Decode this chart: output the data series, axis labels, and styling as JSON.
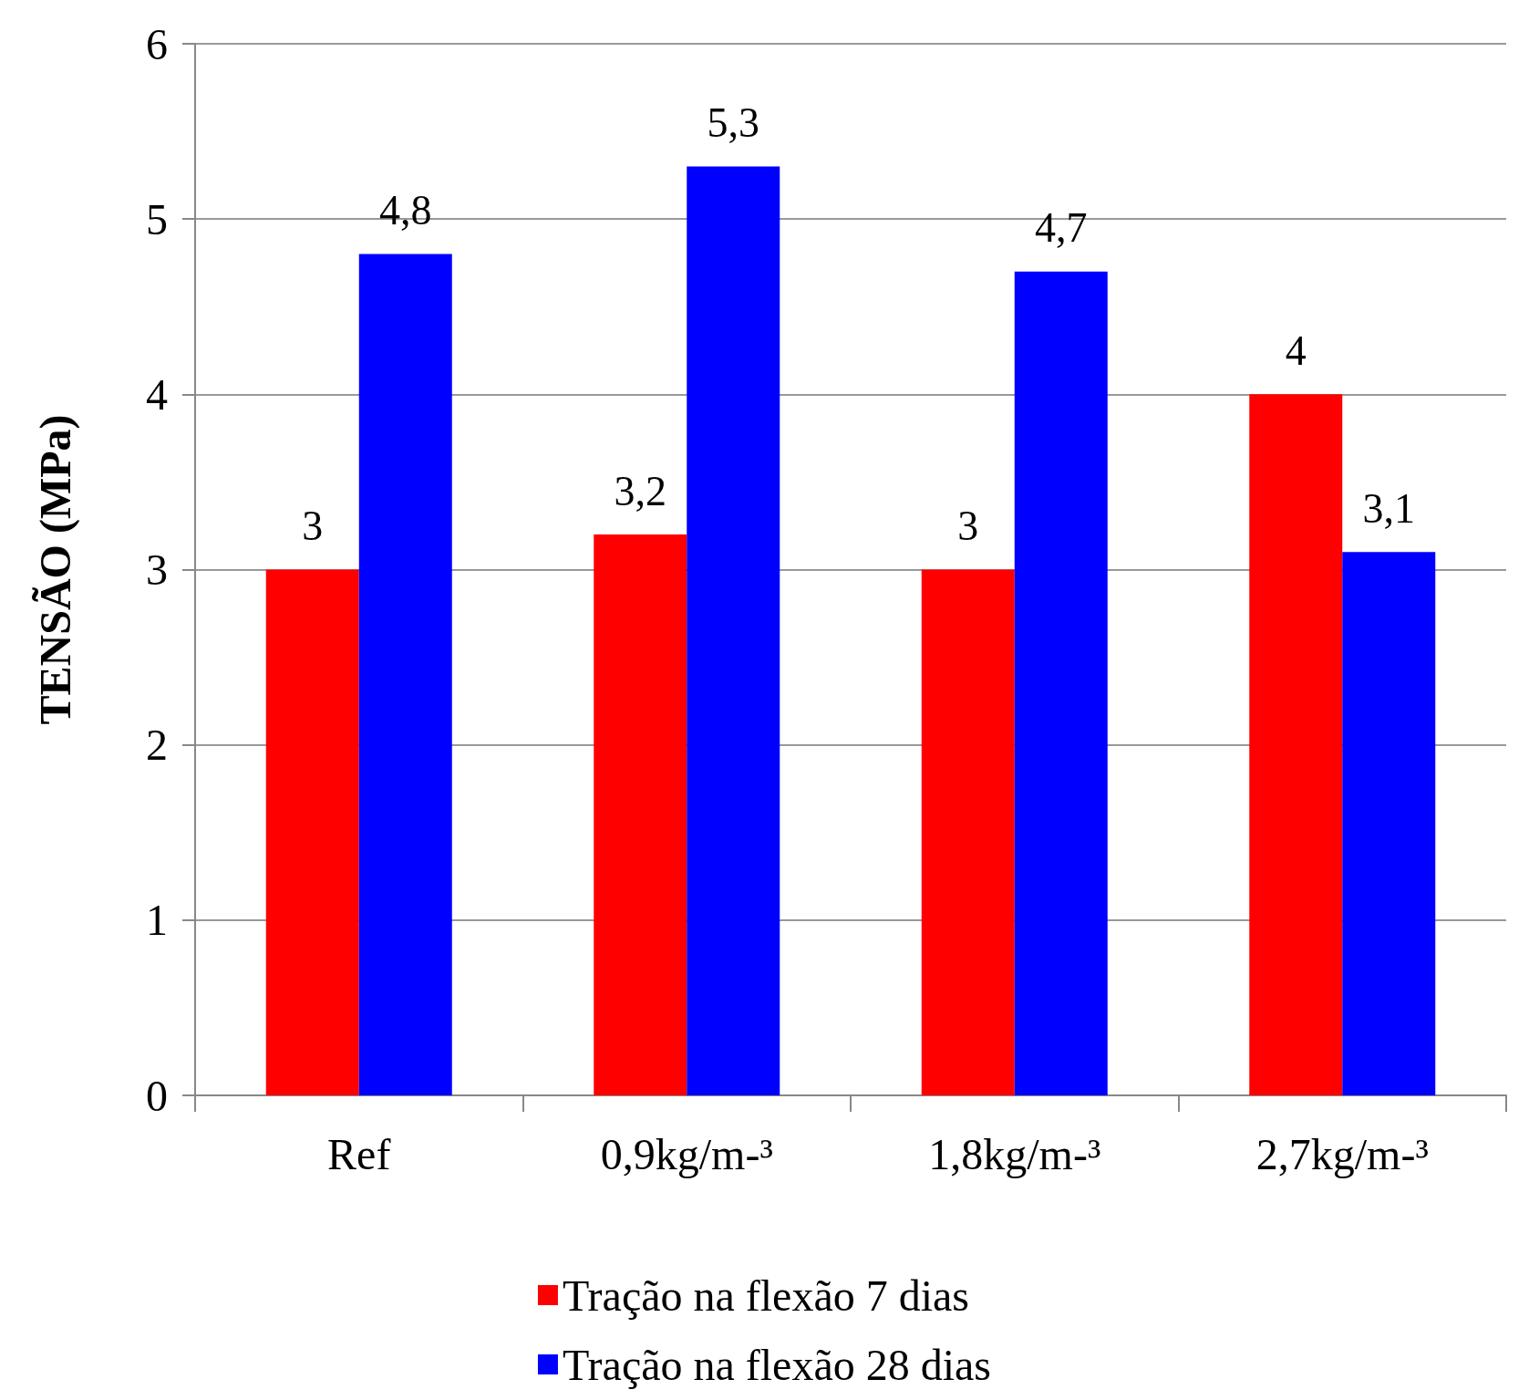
{
  "chart_data": {
    "type": "bar",
    "ylabel": "TENSÃO (MPa)",
    "categories": [
      "Ref",
      "0,9kg/m-³",
      "1,8kg/m-³",
      "2,7kg/m-³"
    ],
    "series": [
      {
        "name": "Tração na flexão 7 dias",
        "color": "#ff0000",
        "values": [
          3,
          3.2,
          3,
          4
        ],
        "value_labels": [
          "3",
          "3,2",
          "3",
          "4"
        ]
      },
      {
        "name": "Tração na flexão 28 dias",
        "color": "#0000ff",
        "values": [
          4.8,
          5.3,
          4.7,
          3.1
        ],
        "value_labels": [
          "4,8",
          "5,3",
          "4,7",
          "3,1"
        ]
      }
    ],
    "ylim": [
      0,
      6
    ],
    "yticks": [
      0,
      1,
      2,
      3,
      4,
      5,
      6
    ],
    "grid": "y",
    "legend": "bottom"
  }
}
